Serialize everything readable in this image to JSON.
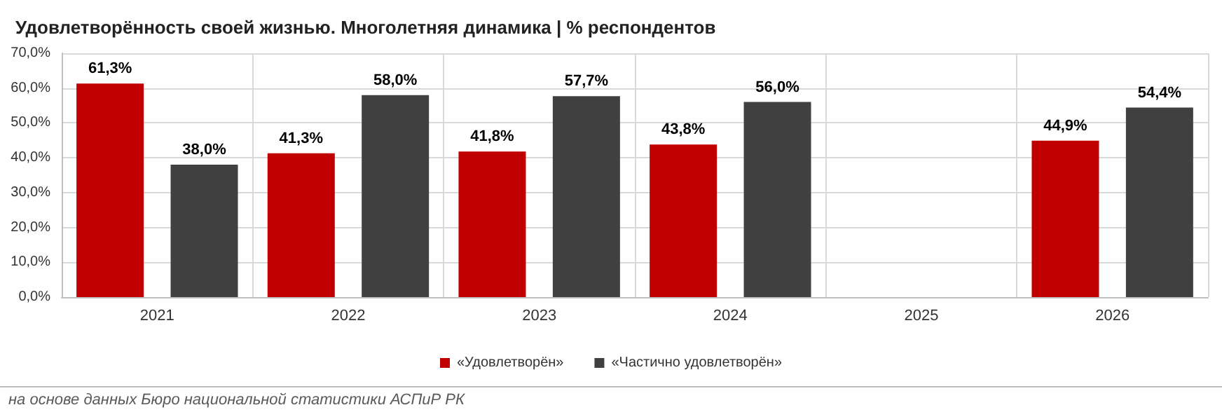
{
  "chart_data": {
    "type": "bar",
    "title": "Удовлетворённость своей жизнью. Многолетняя динамика | % респондентов",
    "categories": [
      "2021",
      "2022",
      "2023",
      "2024",
      "2025",
      "2026"
    ],
    "series": [
      {
        "name": "«Удовлетворён»",
        "color": "#c00000",
        "values": [
          61.3,
          41.3,
          41.8,
          43.8,
          null,
          44.9
        ],
        "value_labels": [
          "61,3%",
          "41,3%",
          "41,8%",
          "43,8%",
          null,
          "44,9%"
        ]
      },
      {
        "name": "«Частично удовлетворён»",
        "color": "#404040",
        "values": [
          38.0,
          58.0,
          57.7,
          56.0,
          null,
          54.4
        ],
        "value_labels": [
          "38,0%",
          "58,0%",
          "57,7%",
          "56,0%",
          null,
          "54,4%"
        ]
      }
    ],
    "ylim": [
      0,
      70
    ],
    "yticks": [
      {
        "value": 0,
        "label": "0,0%"
      },
      {
        "value": 10,
        "label": "10,0%"
      },
      {
        "value": 20,
        "label": "20,0%"
      },
      {
        "value": 30,
        "label": "30,0%"
      },
      {
        "value": 40,
        "label": "40,0%"
      },
      {
        "value": 50,
        "label": "50,0%"
      },
      {
        "value": 60,
        "label": "60,0%"
      },
      {
        "value": 70,
        "label": "70,0%"
      }
    ],
    "grid": true,
    "legend": "bottom",
    "annotations": [
      "на основе данных Бюро национальной статистики АСПиР РК"
    ]
  }
}
